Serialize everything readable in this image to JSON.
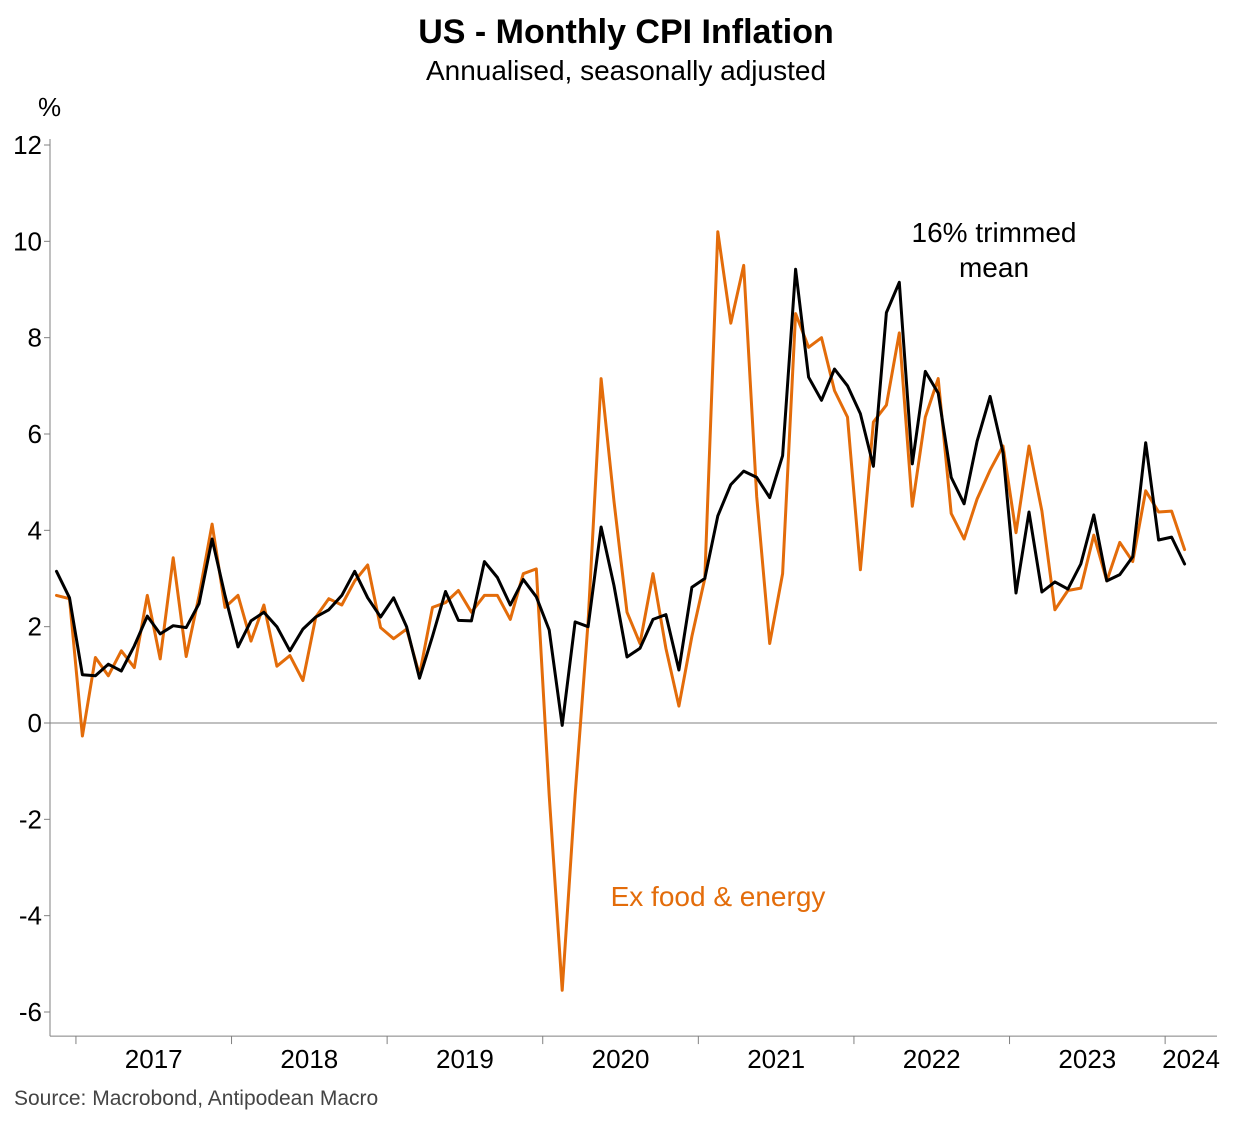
{
  "chart_data": {
    "type": "line",
    "title": "US - Monthly CPI Inflation",
    "subtitle": "Annualised, seasonally adjusted",
    "ylabel": "%",
    "xlabel": "",
    "ylim": [
      -6.5,
      12
    ],
    "yticks": [
      12,
      10,
      8,
      6,
      4,
      2,
      0,
      -2,
      -4,
      -6
    ],
    "x_start": "2016-11",
    "xlim": [
      "2016-11",
      "2024-04"
    ],
    "year_labels": [
      "2017",
      "2018",
      "2019",
      "2020",
      "2021",
      "2022",
      "2023",
      "2024"
    ],
    "grid": false,
    "zero_line": true,
    "source": "Source: Macrobond, Antipodean Macro",
    "colors": {
      "ex_food_energy": "#E36C0A",
      "trimmed_mean": "#000000",
      "axis": "#808080"
    },
    "series": [
      {
        "name": "Ex food & energy",
        "color": "#E36C0A",
        "values": [
          2.65,
          2.58,
          -0.27,
          1.36,
          0.98,
          1.5,
          1.15,
          2.65,
          1.33,
          3.43,
          1.38,
          2.65,
          4.13,
          2.4,
          2.65,
          1.7,
          2.45,
          1.18,
          1.4,
          0.88,
          2.2,
          2.58,
          2.45,
          2.95,
          3.28,
          1.98,
          1.75,
          1.95,
          1.0,
          2.4,
          2.5,
          2.75,
          2.3,
          2.65,
          2.65,
          2.15,
          3.1,
          3.2,
          -1.5,
          -5.55,
          -1.5,
          2.1,
          7.15,
          4.6,
          2.3,
          1.65,
          3.1,
          1.55,
          0.35,
          1.8,
          3.0,
          10.2,
          8.3,
          9.5,
          4.7,
          1.65,
          3.1,
          8.5,
          7.8,
          8.0,
          6.9,
          6.35,
          3.18,
          6.25,
          6.6,
          8.1,
          4.5,
          6.35,
          7.15,
          4.35,
          3.82,
          4.65,
          5.25,
          5.75,
          3.95,
          5.75,
          4.4,
          2.35,
          2.75,
          2.8,
          3.9,
          2.95,
          3.75,
          3.35,
          4.82,
          4.38,
          4.4,
          3.6
        ]
      },
      {
        "name": "16% trimmed mean",
        "color": "#000000",
        "values": [
          3.15,
          2.6,
          1.0,
          0.98,
          1.22,
          1.08,
          1.6,
          2.22,
          1.85,
          2.02,
          1.98,
          2.48,
          3.82,
          2.65,
          1.58,
          2.12,
          2.3,
          2.0,
          1.5,
          1.95,
          2.2,
          2.35,
          2.65,
          3.15,
          2.6,
          2.2,
          2.6,
          2.0,
          0.93,
          1.8,
          2.73,
          2.13,
          2.12,
          3.35,
          3.02,
          2.45,
          2.98,
          2.62,
          1.93,
          -0.05,
          2.1,
          2.0,
          4.07,
          2.85,
          1.37,
          1.55,
          2.15,
          2.25,
          1.1,
          2.82,
          3.0,
          4.3,
          4.95,
          5.23,
          5.1,
          4.68,
          5.55,
          9.42,
          7.18,
          6.7,
          7.35,
          7.0,
          6.42,
          5.33,
          8.52,
          9.15,
          5.38,
          7.3,
          6.85,
          5.1,
          4.55,
          5.85,
          6.78,
          5.62,
          2.7,
          4.38,
          2.72,
          2.93,
          2.78,
          3.3,
          4.32,
          2.95,
          3.08,
          3.45,
          5.82,
          3.8,
          3.86,
          3.3
        ]
      }
    ],
    "annotations": [
      {
        "text": "16% trimmed",
        "series": "16% trimmed mean"
      },
      {
        "text": "mean",
        "series": "16% trimmed mean"
      },
      {
        "text": "Ex food & energy",
        "series": "Ex food & energy"
      }
    ]
  }
}
